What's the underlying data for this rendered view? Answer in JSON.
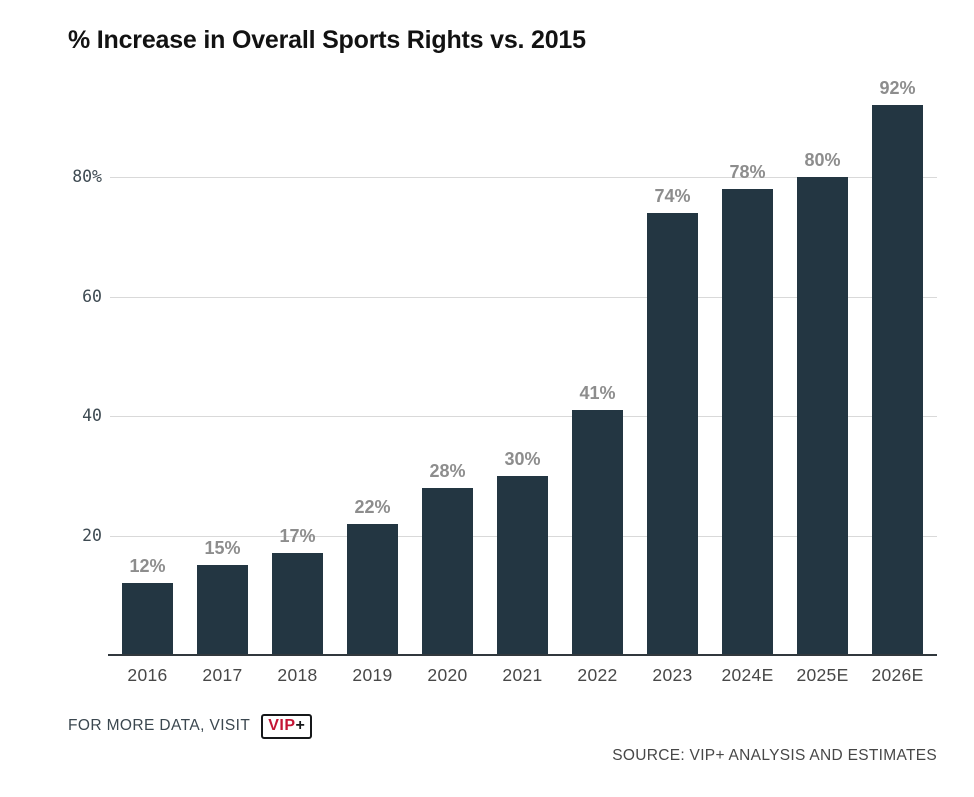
{
  "title": "% Increase in Overall Sports Rights vs. 2015",
  "chart_data": {
    "type": "bar",
    "title": "% Increase in Overall Sports Rights vs. 2015",
    "categories": [
      "2016",
      "2017",
      "2018",
      "2019",
      "2020",
      "2021",
      "2022",
      "2023",
      "2024E",
      "2025E",
      "2026E"
    ],
    "values": [
      12,
      15,
      17,
      22,
      28,
      30,
      41,
      74,
      78,
      80,
      92
    ],
    "bar_labels": [
      "12%",
      "15%",
      "17%",
      "22%",
      "28%",
      "30%",
      "41%",
      "74%",
      "78%",
      "80%",
      "92%"
    ],
    "xlabel": "",
    "ylabel": "",
    "ylim": [
      0,
      95
    ],
    "yticks": [
      {
        "value": 20,
        "label": "20"
      },
      {
        "value": 40,
        "label": "40"
      },
      {
        "value": 60,
        "label": "60"
      },
      {
        "value": 80,
        "label": "80%"
      }
    ],
    "grid": "horizontal-light",
    "legend": "none"
  },
  "colors": {
    "bar": "#233642",
    "grid": "#d9d9d9",
    "axis": "#31383d",
    "value_label": "#8d8d8d",
    "tick_label": "#3e4a52",
    "title": "#121212",
    "vip_red": "#c41434"
  },
  "footer": {
    "more_data_text": "FOR MORE DATA, VISIT",
    "vip_logo": {
      "vip": "VIP",
      "plus": "+"
    },
    "source_text": "SOURCE: VIP+ ANALYSIS AND ESTIMATES"
  }
}
